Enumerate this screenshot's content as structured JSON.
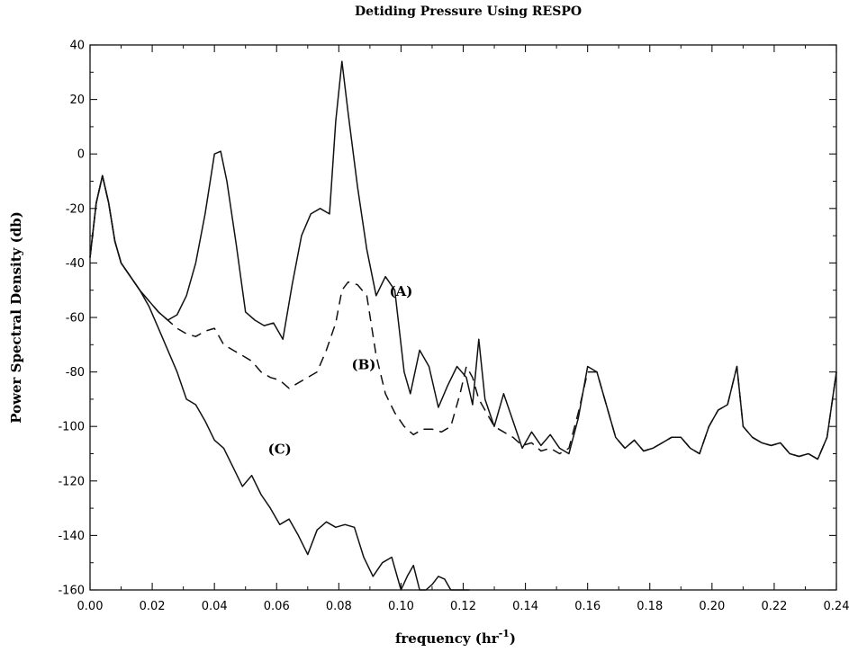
{
  "chart_data": {
    "type": "line",
    "title": "Detiding Pressure Using RESPO",
    "xlabel": "frequency (hr",
    "xlabel_sup": "-1",
    "xlabel_end": ")",
    "ylabel": "Power Spectral Density (db)",
    "xlim": [
      0.0,
      0.24
    ],
    "ylim": [
      -160,
      40
    ],
    "x_ticks": [
      "0.00",
      "0.02",
      "0.04",
      "0.06",
      "0.08",
      "0.10",
      "0.12",
      "0.14",
      "0.16",
      "0.18",
      "0.20",
      "0.22",
      "0.24"
    ],
    "y_ticks": [
      "40",
      "20",
      "0",
      "-20",
      "-40",
      "-60",
      "-80",
      "-100",
      "-120",
      "-140",
      "-160"
    ],
    "annotations": [
      {
        "text": "(A)",
        "x": 0.1,
        "y": -52
      },
      {
        "text": "(B)",
        "x": 0.088,
        "y": -79
      },
      {
        "text": "(C)",
        "x": 0.061,
        "y": -110
      }
    ],
    "series": [
      {
        "name": "(A)",
        "style": "solid",
        "x": [
          0.0,
          0.002,
          0.004,
          0.006,
          0.008,
          0.01,
          0.013,
          0.016,
          0.019,
          0.022,
          0.025,
          0.028,
          0.031,
          0.034,
          0.037,
          0.04,
          0.042,
          0.044,
          0.047,
          0.05,
          0.053,
          0.056,
          0.059,
          0.062,
          0.065,
          0.068,
          0.071,
          0.074,
          0.077,
          0.079,
          0.081,
          0.083,
          0.086,
          0.089,
          0.092,
          0.095,
          0.098,
          0.101,
          0.103,
          0.106,
          0.109,
          0.112,
          0.115,
          0.118,
          0.121,
          0.123,
          0.125,
          0.127,
          0.13,
          0.133,
          0.136,
          0.139,
          0.142,
          0.145,
          0.148,
          0.151,
          0.154,
          0.157,
          0.16,
          0.163,
          0.166,
          0.169,
          0.172,
          0.175,
          0.178,
          0.181,
          0.184,
          0.187,
          0.19,
          0.193,
          0.196,
          0.199,
          0.202,
          0.205,
          0.208,
          0.21,
          0.213,
          0.216,
          0.219,
          0.222,
          0.225,
          0.228,
          0.231,
          0.234,
          0.237,
          0.24
        ],
        "y": [
          -38,
          -18,
          -8,
          -18,
          -32,
          -40,
          -45,
          -50,
          -54,
          -58,
          -61,
          -59,
          -52,
          -40,
          -22,
          0,
          1,
          -10,
          -33,
          -58,
          -61,
          -63,
          -62,
          -68,
          -48,
          -30,
          -22,
          -20,
          -22,
          12,
          34,
          15,
          -12,
          -35,
          -52,
          -45,
          -50,
          -80,
          -88,
          -72,
          -78,
          -93,
          -85,
          -78,
          -82,
          -92,
          -68,
          -90,
          -100,
          -88,
          -98,
          -108,
          -102,
          -107,
          -103,
          -108,
          -110,
          -97,
          -78,
          -80,
          -92,
          -104,
          -108,
          -105,
          -109,
          -108,
          -106,
          -104,
          -104,
          -108,
          -110,
          -100,
          -94,
          -92,
          -78,
          -100,
          -104,
          -106,
          -107,
          -106,
          -110,
          -111,
          -110,
          -112,
          -104,
          -80
        ]
      },
      {
        "name": "(B)",
        "style": "dashed",
        "x": [
          0.0,
          0.002,
          0.004,
          0.006,
          0.008,
          0.01,
          0.013,
          0.016,
          0.019,
          0.022,
          0.025,
          0.028,
          0.031,
          0.034,
          0.037,
          0.04,
          0.043,
          0.046,
          0.049,
          0.052,
          0.055,
          0.058,
          0.061,
          0.064,
          0.067,
          0.07,
          0.073,
          0.076,
          0.079,
          0.081,
          0.083,
          0.086,
          0.089,
          0.092,
          0.095,
          0.098,
          0.101,
          0.104,
          0.107,
          0.11,
          0.113,
          0.116,
          0.119,
          0.121,
          0.123,
          0.125,
          0.127,
          0.13,
          0.133,
          0.136,
          0.139,
          0.142,
          0.145,
          0.148,
          0.151,
          0.154,
          0.157,
          0.16,
          0.163,
          0.166,
          0.169,
          0.172,
          0.175,
          0.178,
          0.181,
          0.184,
          0.187,
          0.19,
          0.193,
          0.196,
          0.199,
          0.202,
          0.205,
          0.208,
          0.21,
          0.213,
          0.216,
          0.219,
          0.222,
          0.225,
          0.228,
          0.231,
          0.234,
          0.237,
          0.24
        ],
        "y": [
          -38,
          -18,
          -8,
          -18,
          -32,
          -40,
          -45,
          -50,
          -54,
          -58,
          -61,
          -64,
          -66,
          -67,
          -65,
          -64,
          -70,
          -72,
          -74,
          -76,
          -80,
          -82,
          -83,
          -86,
          -84,
          -82,
          -80,
          -72,
          -62,
          -50,
          -47,
          -48,
          -52,
          -74,
          -88,
          -95,
          -100,
          -103,
          -101,
          -101,
          -102,
          -100,
          -88,
          -78,
          -82,
          -90,
          -94,
          -100,
          -102,
          -104,
          -107,
          -106,
          -109,
          -108,
          -110,
          -108,
          -95,
          -80,
          -80,
          -92,
          -104,
          -108,
          -105,
          -109,
          -108,
          -106,
          -104,
          -104,
          -108,
          -110,
          -100,
          -94,
          -92,
          -78,
          -100,
          -104,
          -106,
          -107,
          -106,
          -110,
          -111,
          -110,
          -112,
          -104,
          -80
        ]
      },
      {
        "name": "(C)",
        "style": "solid",
        "x": [
          0.0,
          0.002,
          0.004,
          0.006,
          0.008,
          0.01,
          0.013,
          0.016,
          0.019,
          0.022,
          0.025,
          0.028,
          0.031,
          0.034,
          0.037,
          0.04,
          0.043,
          0.046,
          0.049,
          0.052,
          0.055,
          0.058,
          0.061,
          0.064,
          0.067,
          0.07,
          0.073,
          0.076,
          0.079,
          0.082,
          0.085,
          0.088,
          0.091,
          0.094,
          0.097,
          0.1,
          0.102,
          0.104,
          0.106,
          0.108,
          0.11,
          0.112,
          0.114,
          0.116,
          0.12,
          0.122
        ],
        "y": [
          -38,
          -18,
          -8,
          -18,
          -32,
          -40,
          -45,
          -50,
          -56,
          -64,
          -72,
          -80,
          -90,
          -92,
          -98,
          -105,
          -108,
          -115,
          -122,
          -118,
          -125,
          -130,
          -136,
          -134,
          -140,
          -147,
          -138,
          -135,
          -137,
          -136,
          -137,
          -148,
          -155,
          -150,
          -148,
          -160,
          -155,
          -151,
          -160,
          -160,
          -158,
          -155,
          -156,
          -160,
          -160,
          -160
        ]
      }
    ]
  }
}
